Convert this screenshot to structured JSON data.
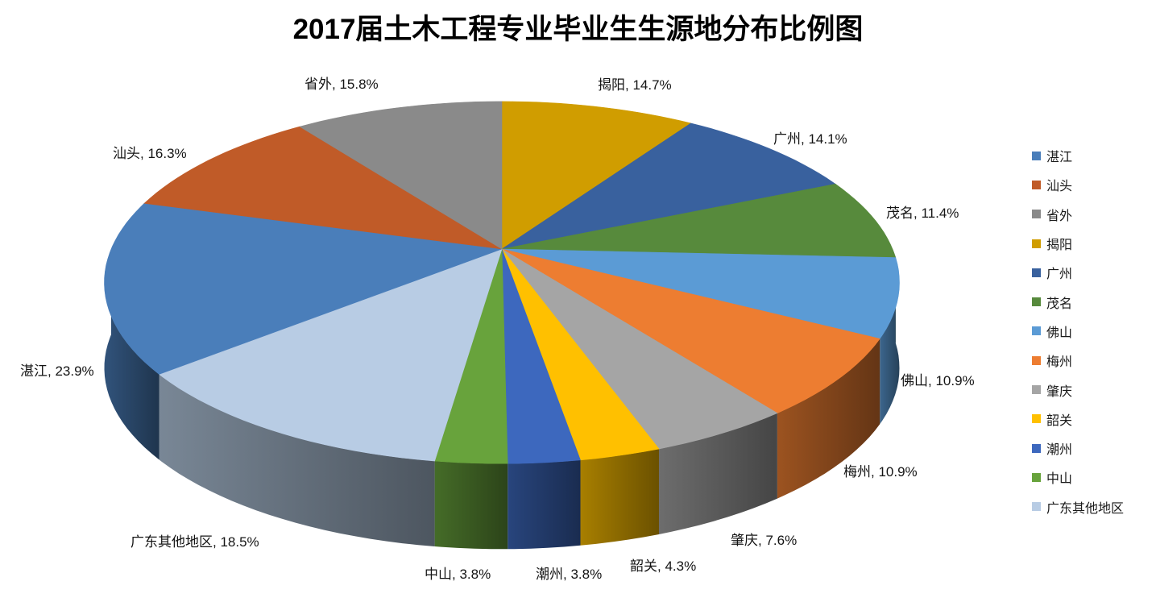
{
  "chart_data": {
    "type": "pie",
    "projection": "3d-perspective",
    "title": "2017届土木工程专业毕业生生源地分布比例图",
    "unit": "%",
    "legend_position": "right",
    "grid": false,
    "clockwise": true,
    "first_slice_at_top": "揭阳",
    "label_format": "{label}, {value}%",
    "slices": [
      {
        "label": "湛江",
        "value": 23.9,
        "color": "#4A7EBA"
      },
      {
        "label": "汕头",
        "value": 16.3,
        "color": "#C05B28"
      },
      {
        "label": "省外",
        "value": 15.8,
        "color": "#8A8A8A"
      },
      {
        "label": "揭阳",
        "value": 14.7,
        "color": "#D09D00"
      },
      {
        "label": "广州",
        "value": 14.1,
        "color": "#39619E"
      },
      {
        "label": "茂名",
        "value": 11.4,
        "color": "#578A3C"
      },
      {
        "label": "佛山",
        "value": 10.9,
        "color": "#5B9BD5"
      },
      {
        "label": "梅州",
        "value": 10.9,
        "color": "#ED7D31"
      },
      {
        "label": "肇庆",
        "value": 7.6,
        "color": "#A5A5A5"
      },
      {
        "label": "韶关",
        "value": 4.3,
        "color": "#FFC000"
      },
      {
        "label": "潮州",
        "value": 3.8,
        "color": "#3D68BE"
      },
      {
        "label": "中山",
        "value": 3.8,
        "color": "#68A33C"
      },
      {
        "label": "广东其他地区",
        "value": 18.5,
        "color": "#B8CCE4"
      }
    ]
  }
}
